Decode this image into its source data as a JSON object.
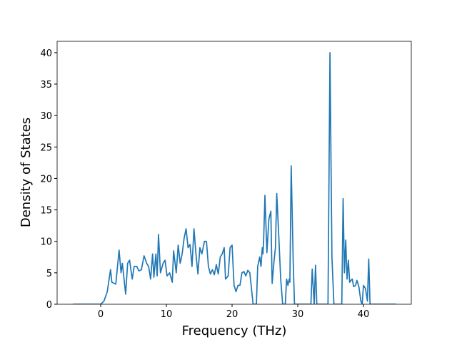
{
  "chart_data": {
    "type": "line",
    "xlabel": "Frequency (THz)",
    "ylabel": "Density of States",
    "x": [
      -4.2,
      0,
      0.5,
      1,
      1.5,
      1.7,
      2.3,
      2.8,
      3.1,
      3.3,
      3.8,
      4.1,
      4.4,
      4.8,
      5.1,
      5.5,
      5.8,
      6.2,
      6.6,
      7,
      7.3,
      7.6,
      7.9,
      8.1,
      8.4,
      8.6,
      8.8,
      9.1,
      9.5,
      9.8,
      10.1,
      10.5,
      10.9,
      11.1,
      11.5,
      11.8,
      12.1,
      12.4,
      12.7,
      13,
      13.3,
      13.6,
      13.9,
      14.2,
      14.5,
      14.8,
      15.1,
      15.4,
      15.8,
      16.1,
      16.4,
      16.7,
      17,
      17.3,
      17.6,
      17.9,
      18.2,
      18.5,
      18.8,
      19,
      19.4,
      19.7,
      20,
      20.3,
      20.6,
      20.9,
      21.2,
      21.5,
      21.8,
      22.1,
      22.4,
      22.7,
      23,
      23.2,
      23.7,
      23.9,
      24.2,
      24.4,
      24.6,
      24.7,
      24.8,
      25,
      25.3,
      25.6,
      25.9,
      26.1,
      26.4,
      26.6,
      26.8,
      27.1,
      27.4,
      27.7,
      28.1,
      28.3,
      28.5,
      28.7,
      28.8,
      29,
      29.3,
      29.5,
      32,
      32.2,
      32.5,
      32.7,
      32.9,
      34.6,
      34.9,
      35.2,
      35.5,
      36.7,
      36.9,
      37.1,
      37.3,
      37.5,
      37.7,
      37.9,
      38.1,
      38.3,
      38.5,
      38.8,
      39,
      39.3,
      39.6,
      39.8,
      40,
      40.3,
      40.6,
      40.8,
      41,
      45
    ],
    "series": [
      {
        "color": "#1f77b4",
        "values": [
          0,
          0,
          0.5,
          2,
          5.5,
          3.5,
          3.2,
          8.6,
          5,
          6.5,
          1.6,
          6.5,
          7,
          4,
          6,
          6,
          5.3,
          5.5,
          7.7,
          6.5,
          6,
          4,
          8,
          4.3,
          8,
          4.5,
          11.1,
          5,
          6.5,
          7,
          4.5,
          5,
          3.5,
          8.5,
          5,
          9.4,
          6.5,
          8,
          10.5,
          12,
          9,
          9.5,
          6,
          12,
          8,
          4.8,
          9,
          8,
          10,
          10,
          6,
          4.8,
          5.5,
          4.7,
          6.3,
          4.8,
          7.5,
          8,
          9,
          4,
          4.5,
          9,
          9.4,
          3,
          2,
          3,
          3,
          5,
          5.2,
          4.5,
          5.4,
          5,
          2,
          0,
          0,
          6,
          7.5,
          6,
          9,
          8,
          10,
          17.3,
          8.2,
          13.5,
          14.8,
          3.3,
          7,
          9,
          17.6,
          11,
          4,
          0,
          0,
          4,
          3,
          4,
          3.5,
          22,
          7,
          0,
          0,
          5.6,
          0,
          6.2,
          0,
          0,
          40,
          7.5,
          0,
          0,
          16.8,
          5,
          10.2,
          4,
          7,
          3.5,
          3.8,
          4,
          2.8,
          3,
          3.8,
          2.8,
          0.5,
          0,
          3,
          2.5,
          0.5,
          7.2,
          0,
          0
        ]
      }
    ],
    "xlim": [
      -6.63,
      47.28
    ],
    "ylim": [
      0,
      41.8
    ],
    "xticks": [
      0,
      10,
      20,
      30,
      40
    ],
    "yticks": [
      0,
      5,
      10,
      15,
      20,
      25,
      30,
      35,
      40
    ]
  }
}
